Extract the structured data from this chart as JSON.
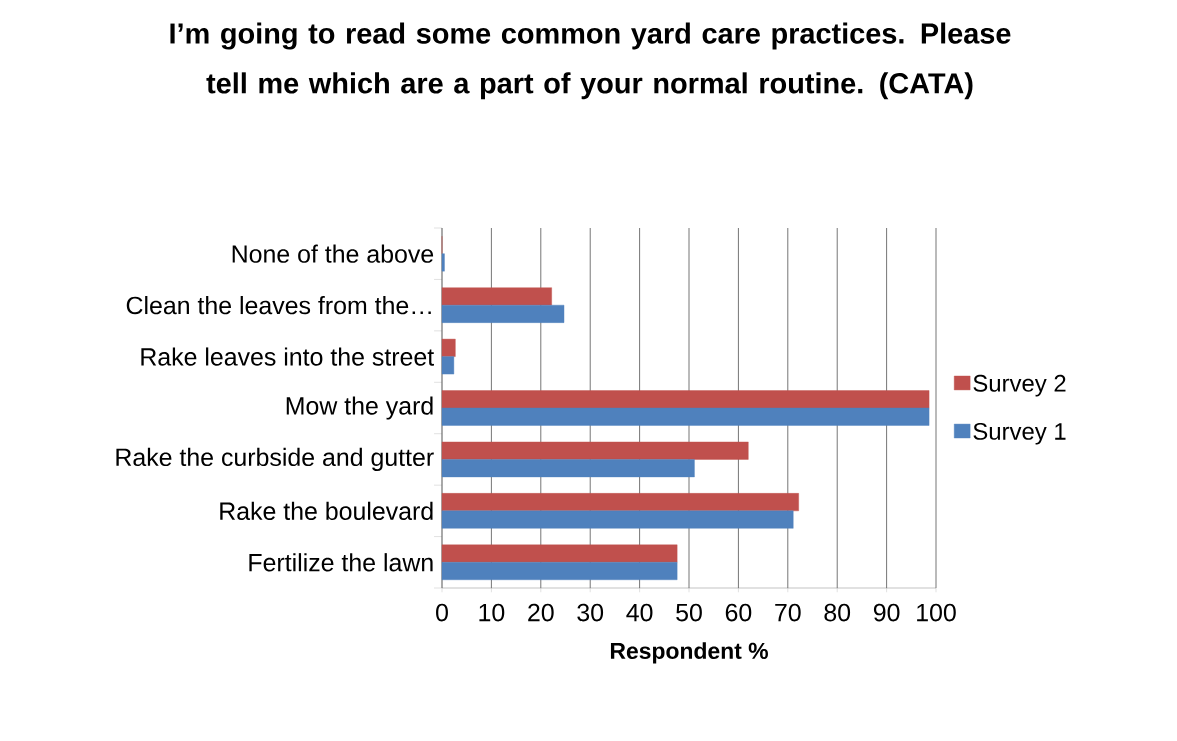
{
  "chart_data": {
    "type": "bar",
    "orientation": "horizontal",
    "title": "I’m going to read some common yard care practices. Please tell me which are a  part of your normal routine. (CATA)",
    "xlabel": "Respondent %",
    "categories": [
      "None of the above",
      "Clean the leaves from the…",
      "Rake leaves into the street",
      "Mow the yard",
      "Rake the curbside and gutter",
      "Rake the boulevard",
      "Fertilize the lawn"
    ],
    "series": [
      {
        "name": "Survey 2",
        "color": "#c0504d",
        "values": [
          0,
          22.2,
          2.7,
          98.6,
          62.0,
          72.2,
          47.6
        ]
      },
      {
        "name": "Survey 1",
        "color": "#4f81bd",
        "values": [
          0.5,
          24.7,
          2.4,
          98.6,
          51.1,
          71.1,
          47.6
        ]
      }
    ],
    "xlim": [
      0,
      100
    ],
    "xticks": [
      0,
      10,
      20,
      30,
      40,
      50,
      60,
      70,
      80,
      90,
      100
    ],
    "grid": "x",
    "legend": "right"
  }
}
